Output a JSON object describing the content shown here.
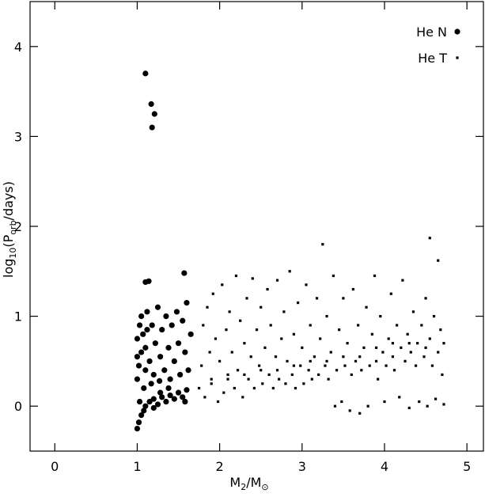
{
  "chart_data": {
    "type": "scatter",
    "x_label": [
      "M",
      "2",
      "/M",
      "⊙"
    ],
    "y_label": [
      "log",
      "10",
      "(P",
      "orb",
      "/days)"
    ],
    "xlim": [
      -0.3,
      5.2
    ],
    "ylim": [
      -0.5,
      4.5
    ],
    "xticks": [
      0,
      1,
      2,
      3,
      4,
      5
    ],
    "yticks": [
      0,
      1,
      2,
      3,
      4
    ],
    "legend": "upper right",
    "series": [
      {
        "name": "He N",
        "color": "#000000",
        "marker": "circle",
        "x": [
          1.0,
          1.02,
          1.05,
          1.08,
          1.03,
          1.1,
          1.15,
          1.2,
          1.25,
          1.3,
          1.35,
          1.4,
          1.45,
          1.5,
          1.55,
          1.6,
          1.58,
          1.2,
          1.28,
          1.38,
          1.0,
          1.02,
          1.05,
          1.0,
          1.03,
          1.07,
          1.1,
          1.12,
          1.15,
          1.18,
          1.2,
          1.22,
          1.25,
          1.28,
          1.3,
          1.33,
          1.35,
          1.38,
          1.4,
          1.42,
          1.45,
          1.48,
          1.5,
          1.52,
          1.55,
          1.58,
          1.6,
          1.62,
          1.65,
          1.08,
          1.17,
          1.27,
          1.0,
          1.05,
          1.1,
          1.12,
          1.1,
          1.17,
          1.21,
          1.18,
          1.1,
          1.14,
          1.57
        ],
        "values": [
          -0.25,
          -0.18,
          -0.1,
          -0.05,
          0.05,
          0.0,
          0.05,
          0.08,
          0.02,
          0.1,
          0.05,
          0.12,
          0.08,
          0.15,
          0.1,
          0.18,
          0.05,
          -0.02,
          0.15,
          0.2,
          0.3,
          0.45,
          0.6,
          0.75,
          0.9,
          0.8,
          0.65,
          1.05,
          0.5,
          0.9,
          0.35,
          0.7,
          1.1,
          0.55,
          0.85,
          0.4,
          1.0,
          0.65,
          0.3,
          0.9,
          0.5,
          1.05,
          0.7,
          0.35,
          0.95,
          0.6,
          1.15,
          0.4,
          0.8,
          0.2,
          0.25,
          0.28,
          0.55,
          1.0,
          0.4,
          0.85,
          3.7,
          3.36,
          3.25,
          3.1,
          1.38,
          1.39,
          1.48
        ]
      },
      {
        "name": "He T",
        "color": "#000000",
        "marker": "square",
        "x": [
          1.75,
          1.78,
          1.8,
          1.82,
          1.85,
          1.88,
          1.9,
          1.92,
          1.95,
          1.98,
          2.0,
          2.03,
          2.05,
          2.08,
          2.1,
          2.12,
          2.15,
          2.18,
          2.2,
          2.22,
          2.25,
          2.28,
          2.3,
          2.33,
          2.35,
          2.38,
          2.4,
          2.42,
          2.45,
          2.48,
          2.5,
          2.52,
          2.55,
          2.58,
          2.6,
          2.62,
          2.65,
          2.68,
          2.7,
          2.72,
          2.75,
          2.78,
          2.8,
          2.82,
          2.85,
          2.88,
          2.9,
          2.92,
          2.95,
          2.98,
          3.0,
          3.02,
          3.05,
          3.08,
          3.1,
          3.12,
          3.15,
          3.18,
          3.2,
          3.22,
          3.25,
          3.28,
          3.3,
          3.32,
          3.35,
          3.38,
          3.4,
          3.42,
          3.45,
          3.48,
          3.5,
          3.52,
          3.55,
          3.58,
          3.6,
          3.62,
          3.65,
          3.68,
          3.7,
          3.72,
          3.75,
          3.78,
          3.8,
          3.82,
          3.85,
          3.88,
          3.9,
          3.92,
          3.95,
          3.98,
          4.0,
          4.02,
          4.05,
          4.08,
          4.1,
          4.12,
          4.15,
          4.18,
          4.2,
          4.22,
          4.25,
          4.28,
          4.3,
          4.32,
          4.35,
          4.38,
          4.4,
          4.42,
          4.45,
          4.48,
          4.5,
          4.52,
          4.55,
          4.55,
          4.58,
          4.6,
          4.62,
          4.65,
          4.65,
          4.68,
          4.7,
          4.72,
          4.72,
          4.5,
          4.3,
          4.1,
          3.9,
          3.7,
          3.5,
          3.3,
          3.1,
          2.9,
          2.7,
          2.5,
          2.3,
          2.1,
          1.9
        ],
        "values": [
          0.2,
          0.45,
          0.9,
          0.1,
          1.1,
          0.6,
          0.3,
          1.25,
          0.75,
          0.05,
          0.5,
          1.35,
          0.15,
          0.85,
          0.35,
          1.05,
          0.6,
          0.2,
          1.45,
          0.4,
          0.95,
          0.1,
          0.7,
          1.2,
          0.3,
          0.55,
          1.42,
          0.2,
          0.85,
          0.45,
          1.1,
          0.25,
          0.65,
          1.3,
          0.35,
          0.9,
          0.2,
          0.55,
          1.4,
          0.3,
          0.75,
          1.05,
          0.25,
          0.5,
          1.5,
          0.35,
          0.8,
          0.2,
          1.15,
          0.45,
          0.65,
          0.25,
          1.35,
          0.4,
          0.9,
          0.3,
          0.55,
          1.2,
          0.35,
          0.75,
          1.8,
          0.45,
          1.0,
          0.3,
          0.6,
          1.45,
          0.0,
          0.4,
          0.85,
          0.05,
          1.2,
          0.45,
          0.7,
          -0.05,
          0.35,
          1.3,
          0.5,
          0.9,
          -0.08,
          0.4,
          0.65,
          1.1,
          0.0,
          0.45,
          0.8,
          1.45,
          0.5,
          0.3,
          1.0,
          0.6,
          0.05,
          0.45,
          0.75,
          1.25,
          0.55,
          0.4,
          0.9,
          0.1,
          0.65,
          1.4,
          0.5,
          0.8,
          -0.02,
          0.6,
          1.05,
          0.45,
          0.7,
          0.05,
          0.9,
          0.55,
          1.2,
          0.0,
          1.87,
          0.75,
          0.45,
          1.0,
          0.08,
          1.62,
          0.6,
          0.85,
          0.35,
          0.7,
          0.02,
          0.65,
          0.7,
          0.7,
          0.65,
          0.55,
          0.55,
          0.5,
          0.5,
          0.45,
          0.4,
          0.4,
          0.35,
          0.3,
          0.25
        ]
      }
    ]
  }
}
